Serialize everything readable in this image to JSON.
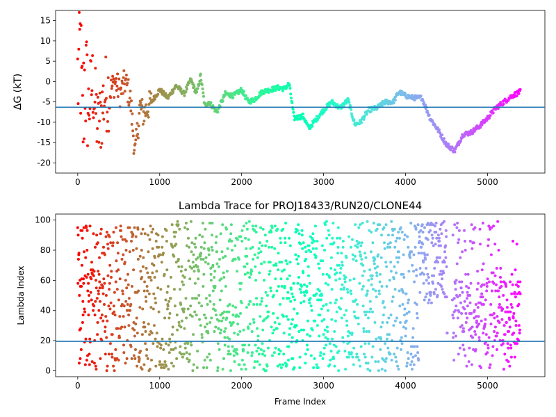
{
  "chart_data": [
    {
      "type": "scatter",
      "title": "",
      "xlabel": "",
      "ylabel": "ΔG (kT)",
      "xlim": [
        -270,
        5700
      ],
      "ylim": [
        -22.5,
        17.5
      ],
      "xticks": [
        0,
        1000,
        2000,
        3000,
        4000,
        5000
      ],
      "xtick_labels": [
        "0",
        "1000",
        "2000",
        "3000",
        "4000",
        "5000"
      ],
      "yticks": [
        15,
        10,
        5,
        0,
        -5,
        -10,
        -15,
        -20
      ],
      "ytick_labels": [
        "15",
        "10",
        "5",
        "0",
        "-5",
        "-10",
        "-15",
        "-20"
      ],
      "colormap": "rainbow (red at frame 0 to violet at frame ~5400)",
      "hline": {
        "y": -6.3,
        "color": "#1f77b4"
      },
      "trace_keypoints": [
        [
          0,
          0.0
        ],
        [
          30,
          8.0
        ],
        [
          60,
          -12.0
        ],
        [
          90,
          3.0
        ],
        [
          120,
          -8.0
        ],
        [
          180,
          0.0
        ],
        [
          250,
          -12.0
        ],
        [
          330,
          -3.0
        ],
        [
          400,
          -2.0
        ],
        [
          460,
          0.0
        ],
        [
          520,
          -3.0
        ],
        [
          580,
          0.0
        ],
        [
          640,
          -4.0
        ],
        [
          700,
          -18.0
        ],
        [
          760,
          -6.0
        ],
        [
          800,
          -8.0
        ],
        [
          900,
          -5.0
        ],
        [
          1000,
          -2.0
        ],
        [
          1100,
          -4.0
        ],
        [
          1200,
          -1.0
        ],
        [
          1300,
          -3.0
        ],
        [
          1380,
          0.5
        ],
        [
          1450,
          -3.0
        ],
        [
          1500,
          1.5
        ],
        [
          1550,
          -6.0
        ],
        [
          1600,
          -5.0
        ],
        [
          1700,
          -7.5
        ],
        [
          1800,
          -3.0
        ],
        [
          1900,
          -3.5
        ],
        [
          2000,
          -2.0
        ],
        [
          2080,
          -5.0
        ],
        [
          2150,
          -4.5
        ],
        [
          2250,
          -2.5
        ],
        [
          2350,
          -2.0
        ],
        [
          2450,
          -1.5
        ],
        [
          2520,
          -1.8
        ],
        [
          2580,
          -0.5
        ],
        [
          2640,
          -9.0
        ],
        [
          2750,
          -8.5
        ],
        [
          2820,
          -11.5
        ],
        [
          2900,
          -9.5
        ],
        [
          3000,
          -7.0
        ],
        [
          3100,
          -5.0
        ],
        [
          3200,
          -6.5
        ],
        [
          3300,
          -4.5
        ],
        [
          3380,
          -10.5
        ],
        [
          3450,
          -10.0
        ],
        [
          3550,
          -7.0
        ],
        [
          3650,
          -6.5
        ],
        [
          3750,
          -5.0
        ],
        [
          3850,
          -5.0
        ],
        [
          3920,
          -2.5
        ],
        [
          4000,
          -3.5
        ],
        [
          4100,
          -4.0
        ],
        [
          4200,
          -4.0
        ],
        [
          4300,
          -9.0
        ],
        [
          4400,
          -12.0
        ],
        [
          4500,
          -15.5
        ],
        [
          4600,
          -17.0
        ],
        [
          4700,
          -13.0
        ],
        [
          4800,
          -12.5
        ],
        [
          4900,
          -11.0
        ],
        [
          5000,
          -9.0
        ],
        [
          5100,
          -6.5
        ],
        [
          5200,
          -5.0
        ],
        [
          5300,
          -3.5
        ],
        [
          5400,
          -2.5
        ]
      ]
    },
    {
      "type": "scatter",
      "title": "Lambda Trace for PROJ18433/RUN20/CLONE44",
      "xlabel": "Frame Index",
      "ylabel": "Lambda Index",
      "xlim": [
        -270,
        5700
      ],
      "ylim": [
        -4,
        104
      ],
      "xticks": [
        0,
        1000,
        2000,
        3000,
        4000,
        5000
      ],
      "xtick_labels": [
        "0",
        "1000",
        "2000",
        "3000",
        "4000",
        "5000"
      ],
      "yticks": [
        0,
        20,
        40,
        60,
        80,
        100
      ],
      "ytick_labels": [
        "0",
        "20",
        "40",
        "60",
        "80",
        "100"
      ],
      "colormap": "rainbow (red at frame 0 to violet at frame ~5400)",
      "hline": {
        "y": 19.5,
        "color": "#1f77b4"
      },
      "frames": [
        0,
        5400
      ],
      "lambda_range": [
        0,
        99
      ],
      "lambda_bands": [
        {
          "x": [
            0,
            4160
          ],
          "range": [
            0,
            99
          ]
        },
        {
          "x": [
            4160,
            4500
          ],
          "range": [
            45,
            99
          ]
        },
        {
          "x": [
            4560,
            5400
          ],
          "range": [
            0,
            99
          ],
          "typical": [
            10,
            60
          ]
        }
      ]
    }
  ]
}
